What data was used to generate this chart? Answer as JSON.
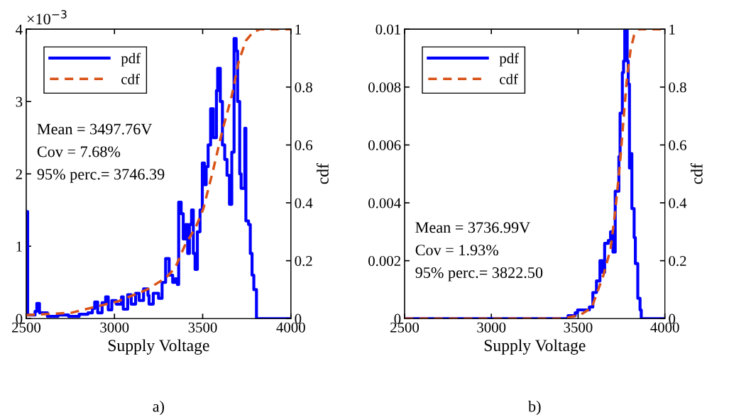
{
  "chart_data": [
    {
      "type": "step",
      "xlabel": "Supply Voltage",
      "y2label": "cdf",
      "xlim": [
        2500,
        4000
      ],
      "xticks": [
        2500,
        3000,
        3500,
        4000
      ],
      "ylim": [
        0,
        4
      ],
      "yticks": [
        0,
        1,
        2,
        3,
        4
      ],
      "y2lim": [
        0,
        1
      ],
      "y2ticks": [
        0,
        0.2,
        0.4,
        0.6,
        0.8,
        1
      ],
      "legend": "top left",
      "grid": false,
      "annotations": [
        "×10$^{−3}$",
        "Mean = 3497.76V",
        "Cov = 7.68%",
        "95% perc.= 3746.39",
        "a)"
      ],
      "series": [
        {
          "name": "pdf",
          "color": "#0000ff",
          "line_style": "solid",
          "x": [
            2500,
            2508,
            2550,
            2560,
            2575,
            2620,
            2680,
            2740,
            2800,
            2850,
            2875,
            2888,
            2905,
            2930,
            2950,
            2965,
            2985,
            3010,
            3040,
            3050,
            3075,
            3095,
            3120,
            3140,
            3165,
            3190,
            3196,
            3220,
            3250,
            3270,
            3290,
            3310,
            3330,
            3345,
            3357,
            3364,
            3378,
            3390,
            3405,
            3415,
            3425,
            3437,
            3447,
            3457,
            3470,
            3485,
            3498,
            3510,
            3520,
            3531,
            3545,
            3560,
            3578,
            3585,
            3600,
            3612,
            3625,
            3638,
            3652,
            3665,
            3678,
            3690,
            3698,
            3710,
            3718,
            3739,
            3745,
            3760,
            3770,
            3780,
            3790,
            3805,
            4000
          ],
          "values": [
            1.48,
            0.05,
            0.1,
            0.21,
            0.08,
            0.03,
            0.05,
            0.03,
            0.06,
            0.08,
            0.14,
            0.23,
            0.08,
            0.22,
            0.3,
            0.12,
            0.25,
            0.2,
            0.3,
            0.13,
            0.33,
            0.2,
            0.35,
            0.25,
            0.41,
            0.32,
            0.2,
            0.35,
            0.28,
            0.5,
            0.83,
            0.6,
            0.5,
            0.55,
            0.47,
            1.61,
            1.45,
            1.1,
            1.3,
            0.9,
            1.3,
            1.5,
            0.9,
            0.68,
            1.2,
            1.5,
            2.15,
            1.85,
            2.1,
            2.4,
            2.9,
            2.5,
            3.15,
            3.46,
            3.0,
            2.4,
            2.2,
            1.98,
            1.58,
            2.3,
            3.87,
            3.7,
            3.0,
            2.0,
            1.8,
            2.63,
            1.35,
            1.3,
            0.9,
            0.6,
            0.4,
            0,
            0
          ]
        },
        {
          "name": "cdf",
          "type": "line",
          "axis": "y2",
          "color": "#d95319",
          "line_style": "dashed",
          "x": [
            2500,
            2754,
            3022,
            3183,
            3290,
            3344,
            3397,
            3464,
            3504,
            3558,
            3612,
            3665,
            3705,
            3745,
            3786,
            3826,
            4000
          ],
          "values": [
            0.012,
            0.02,
            0.06,
            0.1,
            0.14,
            0.175,
            0.25,
            0.32,
            0.38,
            0.51,
            0.65,
            0.77,
            0.89,
            0.96,
            0.99,
            1.0,
            1.0
          ]
        }
      ]
    },
    {
      "type": "step",
      "xlabel": "Supply Voltage",
      "y2label": "cdf",
      "xlim": [
        2500,
        4000
      ],
      "xticks": [
        2500,
        3000,
        3500,
        4000
      ],
      "ylim": [
        0,
        0.01
      ],
      "yticks": [
        0,
        0.002,
        0.004,
        0.006,
        0.008,
        0.01
      ],
      "y2lim": [
        0,
        1
      ],
      "y2ticks": [
        0,
        0.2,
        0.4,
        0.6,
        0.8,
        1
      ],
      "legend": "top left",
      "grid": false,
      "annotations": [
        "Mean = 3736.99V",
        "Cov = 1.93%",
        "95% perc.= 3822.50",
        "b)"
      ],
      "series": [
        {
          "name": "pdf",
          "color": "#0000ff",
          "line_style": "solid",
          "x": [
            2500,
            3442,
            3483,
            3497,
            3524,
            3565,
            3585,
            3606,
            3626,
            3640,
            3653,
            3674,
            3687,
            3701,
            3714,
            3735,
            3742,
            3755,
            3762,
            3769,
            3783,
            3789,
            3796,
            3803,
            3810,
            3823,
            3830,
            3844,
            3857,
            3864,
            4000
          ],
          "values": [
            0,
            0.0001,
            0.0002,
            0.0003,
            0.0003,
            0.0004,
            0.0009,
            0.0013,
            0.002,
            0.0016,
            0.0026,
            0.0027,
            0.003,
            0.0023,
            0.0044,
            0.0056,
            0.0071,
            0.0085,
            0.0089,
            0.01,
            0.0089,
            0.0081,
            0.0052,
            0.0057,
            0.0038,
            0.0028,
            0.0019,
            0.0007,
            0.0003,
            0,
            0
          ]
        },
        {
          "name": "cdf",
          "type": "line",
          "axis": "y2",
          "color": "#d95319",
          "line_style": "dashed",
          "x": [
            2500,
            3400,
            3442,
            3510,
            3578,
            3646,
            3687,
            3714,
            3742,
            3762,
            3783,
            3803,
            3823,
            3850,
            4000
          ],
          "values": [
            0,
            0,
            0.004,
            0.012,
            0.037,
            0.15,
            0.24,
            0.37,
            0.54,
            0.69,
            0.84,
            0.93,
            0.98,
            1.0,
            1.0
          ]
        }
      ]
    }
  ]
}
